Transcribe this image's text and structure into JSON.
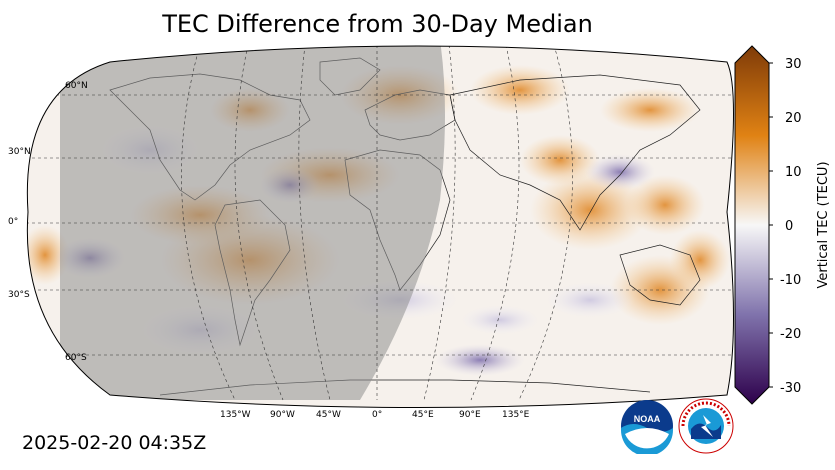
{
  "title": "TEC Difference from 30-Day Median",
  "timestamp": "2025-02-20 04:35Z",
  "map": {
    "projection": "Robinson",
    "lat_labels": [
      "60°N",
      "30°N",
      "0°",
      "30°S",
      "60°S"
    ],
    "lon_labels": [
      "135°W",
      "90°W",
      "45°W",
      "0°",
      "45°E",
      "90°E",
      "135°E"
    ],
    "night_shading": "gray overlay over western hemisphere (Americas, Atlantic, West Africa)"
  },
  "colorbar": {
    "label": "Vertical TEC (TECU)",
    "ticks": [
      "30",
      "20",
      "10",
      "0",
      "-10",
      "-20",
      "-30"
    ],
    "min": -30,
    "max": 30,
    "colors": {
      "max": "#7f3b08",
      "high": "#e08214",
      "mid": "#f7f7f7",
      "low": "#8073ac",
      "min": "#2d004b"
    }
  },
  "logos": {
    "noaa": "NOAA",
    "nws": "NATIONAL WEATHER SERVICE"
  }
}
